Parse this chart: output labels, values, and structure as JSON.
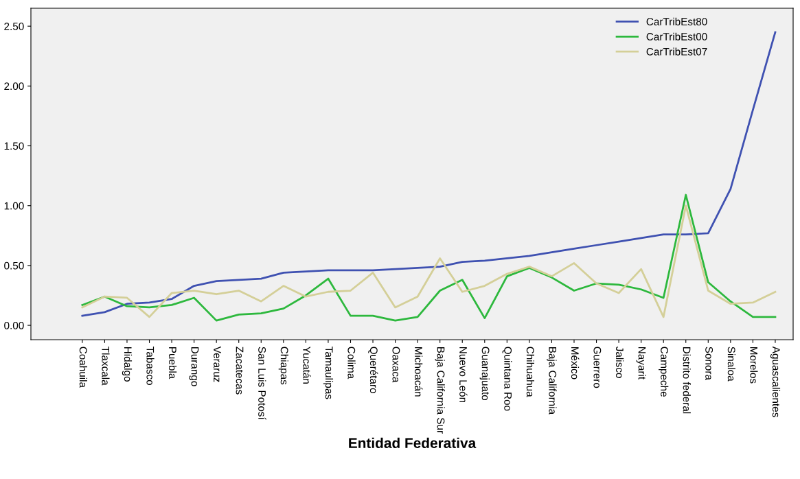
{
  "chart_data": {
    "type": "line",
    "xlabel": "Entidad Federativa",
    "categories": [
      "Coahuila",
      "Tlaxcala",
      "Hidalgo",
      "Tabasco",
      "Puebla",
      "Durango",
      "Veraruz",
      "Zacatecas",
      "San Luis Potosí",
      "Chiapas",
      "Yucatán",
      "Tamaulipas",
      "Colima",
      "Querétaro",
      "Oaxaca",
      "Michoacán",
      "Baja California Sur",
      "Nuevo León",
      "Guanajuato",
      "Quintana Roo",
      "Chihuahua",
      "Baja California",
      "México",
      "Guerrero",
      "Jalisco",
      "Nayarit",
      "Campeche",
      "Distrito federal",
      "Sonora",
      "Sinaloa",
      "Morelos",
      "Aguascalientes"
    ],
    "series": [
      {
        "name": "CarTribEst80",
        "color": "#3f51b1",
        "values": [
          0.08,
          0.11,
          0.18,
          0.19,
          0.22,
          0.33,
          0.37,
          0.38,
          0.39,
          0.44,
          0.45,
          0.46,
          0.46,
          0.46,
          0.47,
          0.48,
          0.49,
          0.53,
          0.54,
          0.56,
          0.58,
          0.61,
          0.64,
          0.67,
          0.7,
          0.73,
          0.76,
          0.76,
          0.77,
          1.14,
          1.8,
          2.45
        ]
      },
      {
        "name": "CarTribEst00",
        "color": "#2db83d",
        "values": [
          0.17,
          0.24,
          0.16,
          0.15,
          0.17,
          0.23,
          0.04,
          0.09,
          0.1,
          0.14,
          0.25,
          0.39,
          0.08,
          0.08,
          0.04,
          0.07,
          0.29,
          0.38,
          0.06,
          0.41,
          0.48,
          0.4,
          0.29,
          0.35,
          0.34,
          0.3,
          0.23,
          1.09,
          0.36,
          0.2,
          0.07,
          0.07
        ]
      },
      {
        "name": "CarTribEst07",
        "color": "#d4cf98",
        "values": [
          0.15,
          0.24,
          0.23,
          0.07,
          0.27,
          0.29,
          0.26,
          0.29,
          0.2,
          0.33,
          0.24,
          0.28,
          0.29,
          0.44,
          0.15,
          0.24,
          0.56,
          0.28,
          0.33,
          0.43,
          0.49,
          0.41,
          0.52,
          0.35,
          0.27,
          0.47,
          0.07,
          1.0,
          0.29,
          0.18,
          0.19,
          0.28
        ]
      }
    ],
    "ylim": [
      -0.12,
      2.65
    ],
    "yticks": [
      {
        "value": 0,
        "label": "0.00"
      },
      {
        "value": 0.5,
        "label": "0.50"
      },
      {
        "value": 1,
        "label": "1.00"
      },
      {
        "value": 1.5,
        "label": "1.50"
      },
      {
        "value": 2,
        "label": "2.00"
      },
      {
        "value": 2.5,
        "label": "2.50"
      }
    ],
    "grid": false,
    "legend": "top right"
  }
}
